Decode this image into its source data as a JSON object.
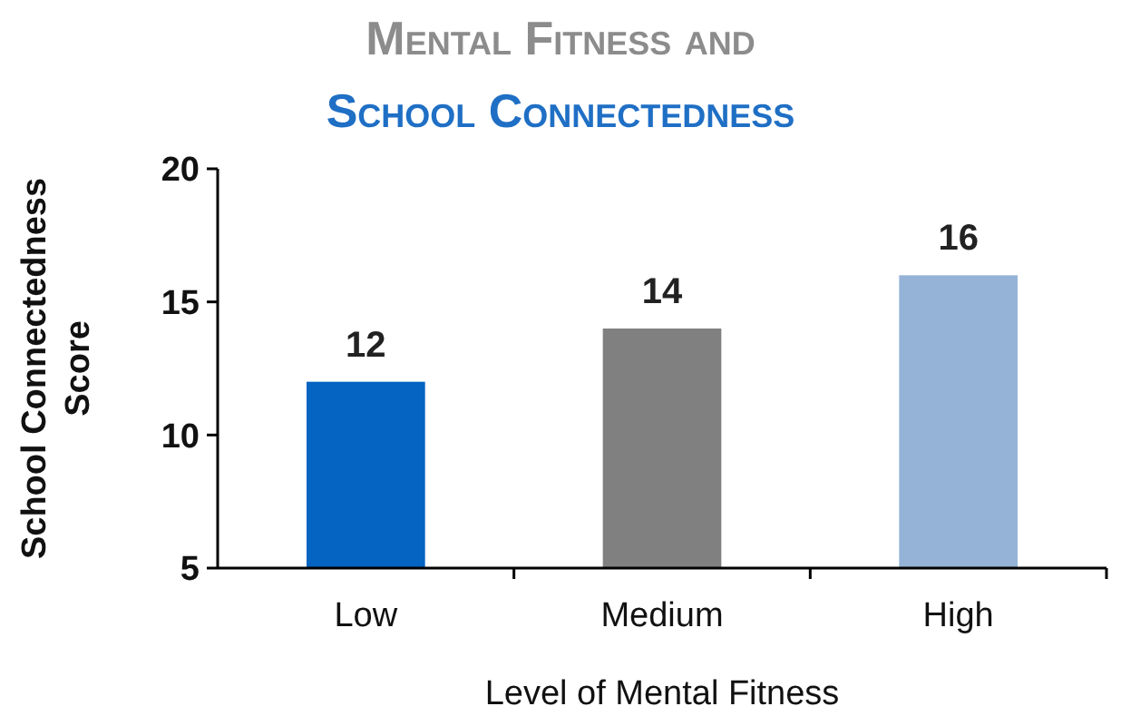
{
  "chart_data": {
    "type": "bar",
    "title": "Mental Fitness and",
    "subtitle": "School Connectedness",
    "xlabel": "Level of Mental Fitness",
    "ylabel": "School Connectedness Score",
    "categories": [
      "Low",
      "Medium",
      "High"
    ],
    "values": [
      12,
      14,
      16
    ],
    "colors": [
      "#0563c1",
      "#808080",
      "#95b3d7"
    ],
    "ylim": [
      5,
      20
    ],
    "yticks": [
      5,
      10,
      15,
      20
    ],
    "grid": false,
    "data_labels": true
  }
}
